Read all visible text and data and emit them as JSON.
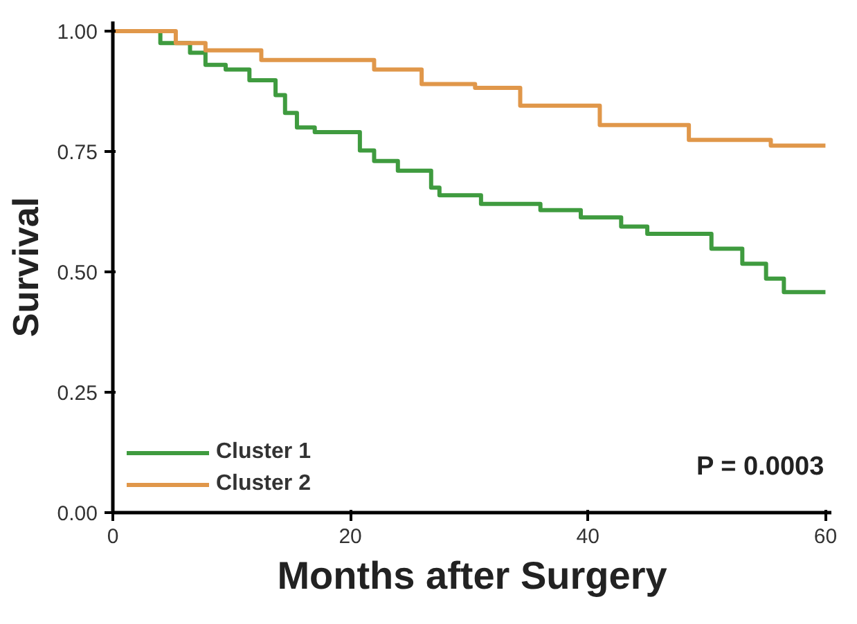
{
  "chart_data": {
    "type": "step",
    "xlabel": "Months after Surgery",
    "ylabel": "Survival",
    "xlim": [
      0,
      60.5
    ],
    "ylim": [
      0,
      1.02
    ],
    "xticks": [
      0,
      20,
      40,
      60
    ],
    "yticks": [
      {
        "value": 0,
        "label": "0.00"
      },
      {
        "value": 0.25,
        "label": "0.25"
      },
      {
        "value": 0.5,
        "label": "0.50"
      },
      {
        "value": 0.75,
        "label": "0.75"
      },
      {
        "value": 1,
        "label": "1.00"
      }
    ],
    "grid": false,
    "legend": "bottom left",
    "marker": "none",
    "line_style": "solid",
    "annotations": [
      "P = 0.0003"
    ],
    "series": [
      {
        "name": "Cluster 1",
        "color": "#3f9b3f",
        "x": [
          0,
          4,
          6.5,
          7.8,
          9.5,
          11.5,
          13.7,
          14.5,
          15.5,
          17,
          20.8,
          22,
          24,
          26.8,
          27.5,
          30.5,
          31,
          36,
          39.4,
          42.8,
          45,
          50.4,
          53,
          55,
          56.5,
          60
        ],
        "values": [
          1,
          0.975,
          0.955,
          0.93,
          0.92,
          0.898,
          0.867,
          0.83,
          0.8,
          0.79,
          0.752,
          0.73,
          0.71,
          0.675,
          0.659,
          0.659,
          0.641,
          0.628,
          0.613,
          0.594,
          0.579,
          0.548,
          0.517,
          0.486,
          0.458,
          0.458
        ]
      },
      {
        "name": "Cluster 2",
        "color": "#e0974a",
        "x": [
          0,
          5.3,
          7.8,
          12.5,
          22,
          26,
          30.5,
          34.3,
          41,
          48.5,
          55.4,
          60
        ],
        "values": [
          1,
          0.975,
          0.96,
          0.94,
          0.92,
          0.89,
          0.882,
          0.845,
          0.805,
          0.774,
          0.762,
          0.762
        ]
      }
    ]
  }
}
